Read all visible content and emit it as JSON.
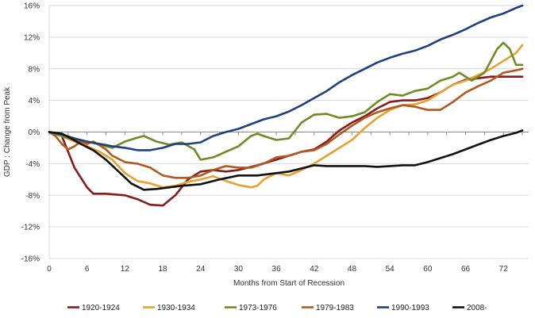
{
  "chart_data": {
    "type": "line",
    "xlabel": "Months from Start of Recession",
    "ylabel": "GDP : Change from Peak",
    "xlim": [
      0,
      76
    ],
    "ylim": [
      -16,
      16
    ],
    "x_ticks": [
      0,
      6,
      12,
      18,
      24,
      30,
      36,
      42,
      48,
      54,
      60,
      66,
      72
    ],
    "y_ticks": [
      16,
      12,
      8,
      4,
      0,
      -4,
      -8,
      -12,
      -16
    ],
    "y_tick_labels": [
      "16%",
      "12%",
      "8%",
      "4%",
      "0%",
      "-4%",
      "-8%",
      "-12%",
      "-16%"
    ],
    "grid": "horizontal",
    "legend_position": "bottom",
    "series": [
      {
        "name": "1920-1924",
        "color": "#8B1A1A",
        "points": [
          [
            0,
            0
          ],
          [
            2,
            -0.5
          ],
          [
            3,
            -2.5
          ],
          [
            4,
            -4.5
          ],
          [
            6,
            -7
          ],
          [
            7,
            -7.8
          ],
          [
            9,
            -7.8
          ],
          [
            12,
            -8
          ],
          [
            14,
            -8.5
          ],
          [
            16,
            -9.2
          ],
          [
            18,
            -9.3
          ],
          [
            20,
            -8
          ],
          [
            22,
            -6
          ],
          [
            24,
            -5
          ],
          [
            26,
            -4.8
          ],
          [
            28,
            -5
          ],
          [
            30,
            -4.8
          ],
          [
            33,
            -4.2
          ],
          [
            36,
            -3.5
          ],
          [
            38,
            -3
          ],
          [
            40,
            -2.5
          ],
          [
            42,
            -2.2
          ],
          [
            44,
            -1.2
          ],
          [
            46,
            0.2
          ],
          [
            48,
            1.2
          ],
          [
            50,
            2
          ],
          [
            52,
            3
          ],
          [
            54,
            3.8
          ],
          [
            56,
            4
          ],
          [
            58,
            4
          ],
          [
            60,
            4.3
          ],
          [
            62,
            5
          ],
          [
            64,
            6
          ],
          [
            66,
            6.6
          ],
          [
            68,
            6.8
          ],
          [
            70,
            7
          ],
          [
            72,
            7
          ],
          [
            75,
            7
          ]
        ]
      },
      {
        "name": "1930-1934",
        "color": "#E8A030",
        "points": [
          [
            0,
            0
          ],
          [
            2,
            -0.5
          ],
          [
            4,
            -1.2
          ],
          [
            6,
            -1.8
          ],
          [
            8,
            -2.5
          ],
          [
            10,
            -3.5
          ],
          [
            12,
            -5.2
          ],
          [
            14,
            -6.2
          ],
          [
            16,
            -6.5
          ],
          [
            18,
            -7
          ],
          [
            20,
            -6.8
          ],
          [
            22,
            -6.3
          ],
          [
            24,
            -6
          ],
          [
            26,
            -5.6
          ],
          [
            28,
            -6.2
          ],
          [
            30,
            -6.7
          ],
          [
            32,
            -7
          ],
          [
            33,
            -6.8
          ],
          [
            34,
            -6
          ],
          [
            36,
            -5.2
          ],
          [
            38,
            -5.5
          ],
          [
            40,
            -4.8
          ],
          [
            42,
            -4
          ],
          [
            44,
            -3
          ],
          [
            46,
            -2
          ],
          [
            48,
            -1
          ],
          [
            50,
            0.5
          ],
          [
            52,
            1.8
          ],
          [
            54,
            2.8
          ],
          [
            56,
            3.4
          ],
          [
            58,
            3.5
          ],
          [
            60,
            4
          ],
          [
            62,
            5
          ],
          [
            64,
            6
          ],
          [
            66,
            6.5
          ],
          [
            68,
            7.2
          ],
          [
            70,
            8
          ],
          [
            72,
            9
          ],
          [
            74,
            10
          ],
          [
            75,
            11
          ]
        ]
      },
      {
        "name": "1973-1976",
        "color": "#6E8B25",
        "points": [
          [
            0,
            0
          ],
          [
            2,
            -0.5
          ],
          [
            4,
            -1
          ],
          [
            6,
            -1.2
          ],
          [
            8,
            -1.6
          ],
          [
            10,
            -2
          ],
          [
            12,
            -1.2
          ],
          [
            14,
            -0.7
          ],
          [
            15,
            -0.5
          ],
          [
            17,
            -1.2
          ],
          [
            19,
            -1.6
          ],
          [
            21,
            -1.3
          ],
          [
            23,
            -2.2
          ],
          [
            24,
            -3.5
          ],
          [
            26,
            -3.2
          ],
          [
            28,
            -2.5
          ],
          [
            30,
            -1.8
          ],
          [
            32,
            -0.5
          ],
          [
            33,
            -0.2
          ],
          [
            34,
            -0.5
          ],
          [
            36,
            -1
          ],
          [
            38,
            -0.8
          ],
          [
            40,
            1.2
          ],
          [
            42,
            2.2
          ],
          [
            44,
            2.3
          ],
          [
            46,
            1.8
          ],
          [
            48,
            2
          ],
          [
            50,
            2.5
          ],
          [
            52,
            3.8
          ],
          [
            54,
            4.8
          ],
          [
            56,
            4.6
          ],
          [
            58,
            5.2
          ],
          [
            60,
            5.5
          ],
          [
            62,
            6.5
          ],
          [
            64,
            7
          ],
          [
            65,
            7.5
          ],
          [
            67,
            6.5
          ],
          [
            69,
            7.5
          ],
          [
            71,
            10.5
          ],
          [
            72,
            11.3
          ],
          [
            73,
            10.5
          ],
          [
            74,
            8.5
          ],
          [
            75,
            8.5
          ]
        ]
      },
      {
        "name": "1979-1983",
        "color": "#B05A20",
        "points": [
          [
            0,
            0
          ],
          [
            1,
            -0.5
          ],
          [
            2,
            -1.5
          ],
          [
            3,
            -2.2
          ],
          [
            4,
            -1.8
          ],
          [
            5,
            -1.2
          ],
          [
            6,
            -1.5
          ],
          [
            7,
            -1.2
          ],
          [
            9,
            -2.2
          ],
          [
            10,
            -3
          ],
          [
            12,
            -3.8
          ],
          [
            14,
            -4
          ],
          [
            16,
            -4.5
          ],
          [
            18,
            -5.5
          ],
          [
            20,
            -5.8
          ],
          [
            22,
            -5.8
          ],
          [
            24,
            -5.5
          ],
          [
            26,
            -4.8
          ],
          [
            28,
            -4.3
          ],
          [
            30,
            -4.5
          ],
          [
            32,
            -4.5
          ],
          [
            34,
            -4
          ],
          [
            36,
            -3.2
          ],
          [
            38,
            -3
          ],
          [
            40,
            -2.5
          ],
          [
            42,
            -2.3
          ],
          [
            44,
            -1.5
          ],
          [
            46,
            -0.3
          ],
          [
            48,
            0.8
          ],
          [
            50,
            1.8
          ],
          [
            52,
            2.5
          ],
          [
            54,
            3
          ],
          [
            56,
            3.4
          ],
          [
            58,
            3.2
          ],
          [
            60,
            2.8
          ],
          [
            62,
            2.8
          ],
          [
            64,
            3.8
          ],
          [
            66,
            5
          ],
          [
            68,
            5.8
          ],
          [
            70,
            6.5
          ],
          [
            72,
            7.5
          ],
          [
            74,
            7.8
          ],
          [
            75,
            8
          ]
        ]
      },
      {
        "name": "1990-1993",
        "color": "#1F3F7F",
        "points": [
          [
            0,
            0
          ],
          [
            2,
            -0.3
          ],
          [
            4,
            -0.8
          ],
          [
            6,
            -1.2
          ],
          [
            8,
            -1.5
          ],
          [
            10,
            -1.8
          ],
          [
            12,
            -2
          ],
          [
            14,
            -2.3
          ],
          [
            16,
            -2.3
          ],
          [
            18,
            -2
          ],
          [
            20,
            -1.5
          ],
          [
            22,
            -1.5
          ],
          [
            24,
            -1.3
          ],
          [
            26,
            -0.5
          ],
          [
            28,
            0
          ],
          [
            30,
            0.4
          ],
          [
            32,
            1
          ],
          [
            34,
            1.6
          ],
          [
            36,
            2
          ],
          [
            38,
            2.6
          ],
          [
            40,
            3.4
          ],
          [
            42,
            4.3
          ],
          [
            44,
            5.2
          ],
          [
            46,
            6.3
          ],
          [
            48,
            7.2
          ],
          [
            50,
            8
          ],
          [
            52,
            8.8
          ],
          [
            54,
            9.4
          ],
          [
            56,
            9.9
          ],
          [
            58,
            10.3
          ],
          [
            60,
            10.9
          ],
          [
            62,
            11.7
          ],
          [
            64,
            12.3
          ],
          [
            66,
            13
          ],
          [
            68,
            13.8
          ],
          [
            70,
            14.5
          ],
          [
            72,
            15
          ],
          [
            74,
            15.7
          ],
          [
            75,
            16
          ]
        ]
      },
      {
        "name": "2008-",
        "color": "#111111",
        "points": [
          [
            0,
            0
          ],
          [
            2,
            -0.2
          ],
          [
            3,
            -0.6
          ],
          [
            5,
            -1.5
          ],
          [
            7,
            -2.3
          ],
          [
            9,
            -3.5
          ],
          [
            11,
            -5
          ],
          [
            13,
            -6.5
          ],
          [
            15,
            -7.3
          ],
          [
            17,
            -7.2
          ],
          [
            19,
            -7
          ],
          [
            21,
            -6.8
          ],
          [
            24,
            -6.6
          ],
          [
            27,
            -6
          ],
          [
            30,
            -5.5
          ],
          [
            33,
            -5.5
          ],
          [
            36,
            -5.2
          ],
          [
            38,
            -5
          ],
          [
            40,
            -4.6
          ],
          [
            42,
            -4.2
          ],
          [
            44,
            -4.3
          ],
          [
            46,
            -4.3
          ],
          [
            48,
            -4.3
          ],
          [
            50,
            -4.3
          ],
          [
            52,
            -4.4
          ],
          [
            54,
            -4.3
          ],
          [
            56,
            -4.2
          ],
          [
            58,
            -4.2
          ],
          [
            60,
            -3.8
          ],
          [
            62,
            -3.3
          ],
          [
            64,
            -2.8
          ],
          [
            66,
            -2.2
          ],
          [
            68,
            -1.6
          ],
          [
            70,
            -1
          ],
          [
            72,
            -0.5
          ],
          [
            74,
            -0.1
          ],
          [
            75,
            0.2
          ]
        ]
      }
    ]
  }
}
